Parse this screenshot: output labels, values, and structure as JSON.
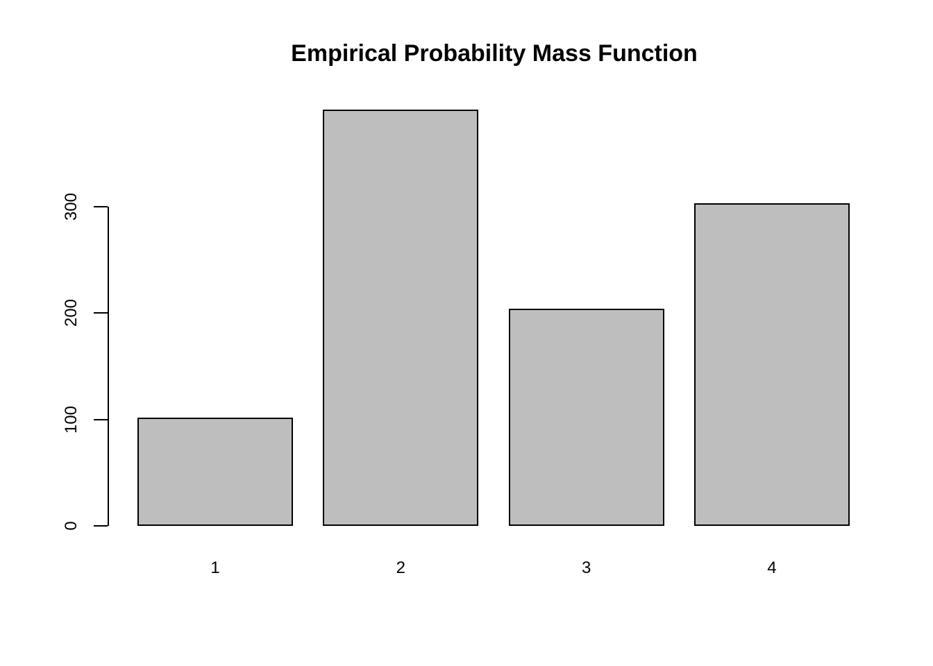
{
  "chart_data": {
    "type": "bar",
    "title": "Empirical Probability Mass Function",
    "xlabel": "",
    "ylabel": "",
    "categories": [
      "1",
      "2",
      "3",
      "4"
    ],
    "values": [
      102,
      391,
      204,
      303
    ],
    "yticks": [
      0,
      100,
      200,
      300
    ],
    "ylim": [
      0,
      403
    ],
    "grid": false,
    "legend_position": "none",
    "colors": {
      "bar_fill": "#BEBEBE",
      "bar_border": "#000000",
      "axis": "#000000",
      "text": "#000000",
      "background": "#FFFFFF"
    }
  }
}
